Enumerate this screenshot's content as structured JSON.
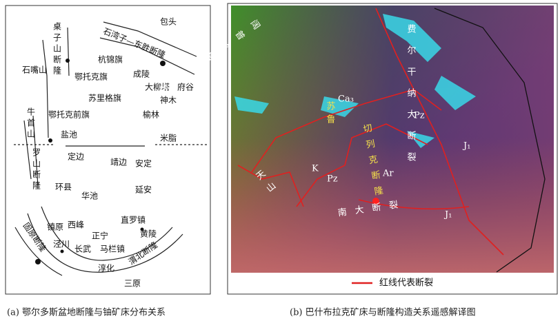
{
  "panel_a": {
    "labels": [
      "包头",
      "石湾子—东胜断隆",
      "桌子山断隆",
      "石嘴山",
      "杭锦旗",
      "鄂托克旗",
      "成陵",
      "大柳塔",
      "府谷",
      "苏里格旗",
      "神木",
      "鄂托克前旗",
      "榆林",
      "牛首山",
      "罗山断隆",
      "盐池",
      "米脂",
      "定边",
      "靖边",
      "安定",
      "环县",
      "华池",
      "延安",
      "直罗镇",
      "镇原",
      "西峰",
      "正宁",
      "黄陵",
      "泾川",
      "长武",
      "马栏镇",
      "渭北断隆",
      "固原断隆",
      "淳化",
      "三原"
    ],
    "caption": "(a) 鄂尔多斯盆地断隆与铀矿床分布关系"
  },
  "panel_b": {
    "labels": [
      "阔普玖塔尔什断裂",
      "费尔干纳大断裂",
      "Ca₃",
      "Pz",
      "J₁",
      "K",
      "Pz",
      "Ar",
      "J₁",
      "苏鲁",
      "切列克断隆",
      "天山",
      "南大断裂"
    ],
    "legend": "红线代表断裂",
    "caption": "(b) 巴什布拉克矿床与断隆构造关系遥感解译图"
  }
}
